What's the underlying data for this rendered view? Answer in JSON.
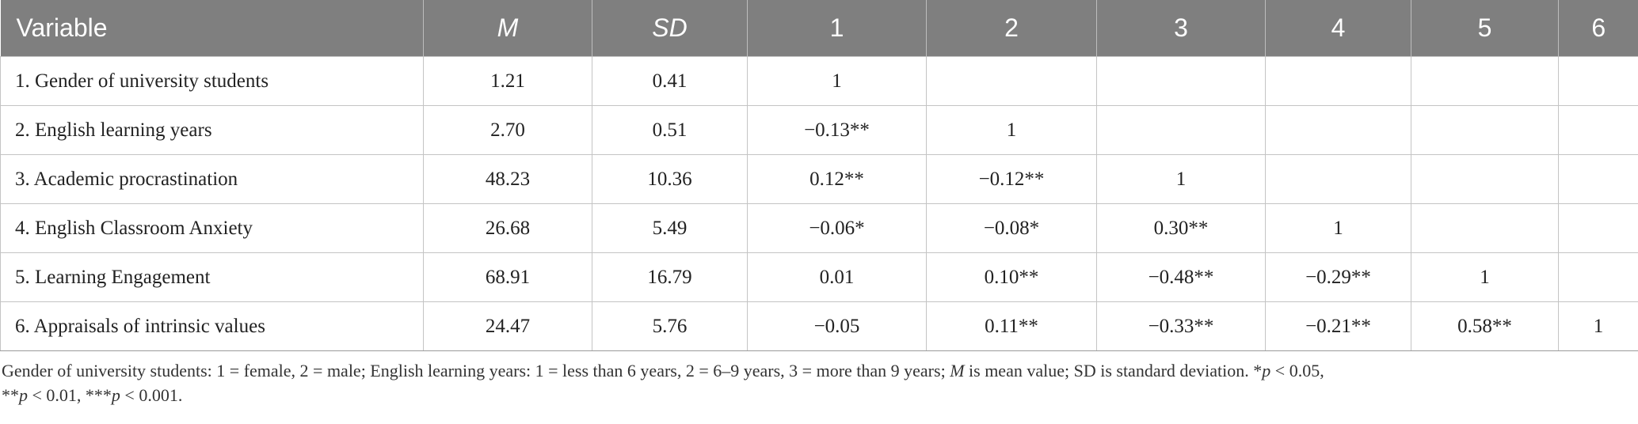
{
  "table": {
    "headers": [
      "Variable",
      "M",
      "SD",
      "1",
      "2",
      "3",
      "4",
      "5",
      "6"
    ],
    "rows": [
      [
        "1. Gender of university students",
        "1.21",
        "0.41",
        "1",
        "",
        "",
        "",
        "",
        ""
      ],
      [
        "2. English learning years",
        "2.70",
        "0.51",
        "−0.13**",
        "1",
        "",
        "",
        "",
        ""
      ],
      [
        "3. Academic procrastination",
        "48.23",
        "10.36",
        "0.12**",
        "−0.12**",
        "1",
        "",
        "",
        ""
      ],
      [
        "4. English Classroom Anxiety",
        "26.68",
        "5.49",
        "−0.06*",
        "−0.08*",
        "0.30**",
        "1",
        "",
        ""
      ],
      [
        "5. Learning Engagement",
        "68.91",
        "16.79",
        "0.01",
        "0.10**",
        "−0.48**",
        "−0.29**",
        "1",
        ""
      ],
      [
        "6. Appraisals of intrinsic values",
        "24.47",
        "5.76",
        "−0.05",
        "0.11**",
        "−0.33**",
        "−0.21**",
        "0.58**",
        "1"
      ]
    ]
  },
  "note": {
    "part1": "Gender of university students: 1 = female, 2 = male; English learning years: 1 = less than 6 years, 2 = 6–9 years, 3 = more than 9 years; ",
    "m_symbol": "M",
    "part2": " is mean value; SD is standard deviation. *",
    "p1": "p",
    "part3": " < 0.05,",
    "part4": "**",
    "p2": "p",
    "part5": " < 0.01, ***",
    "p3": "p",
    "part6": " < 0.001."
  },
  "colors": {
    "header_bg": "#7f7f7f",
    "header_text": "#ffffff",
    "grid": "#c4c4c4"
  }
}
